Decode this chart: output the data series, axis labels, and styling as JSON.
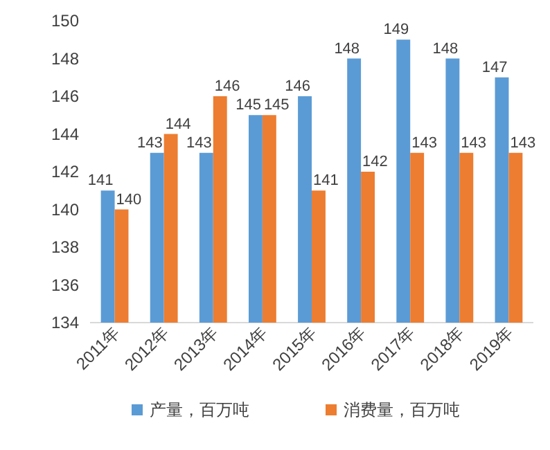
{
  "chart_data": {
    "type": "bar",
    "categories": [
      "2011年",
      "2012年",
      "2013年",
      "2014年",
      "2015年",
      "2016年",
      "2017年",
      "2018年",
      "2019年"
    ],
    "series": [
      {
        "name": "产量，百万吨",
        "color": "#5b9bd5",
        "values": [
          141,
          143,
          143,
          145,
          146,
          148,
          149,
          148,
          147
        ]
      },
      {
        "name": "消费量，百万吨",
        "color": "#ed7d31",
        "values": [
          140,
          144,
          146,
          145,
          141,
          142,
          143,
          143,
          143
        ]
      }
    ],
    "ylim": [
      134,
      150
    ],
    "yticks": [
      134,
      136,
      138,
      140,
      142,
      144,
      146,
      148,
      150
    ],
    "data_labels": true,
    "legend": "bottom",
    "grid": false
  }
}
